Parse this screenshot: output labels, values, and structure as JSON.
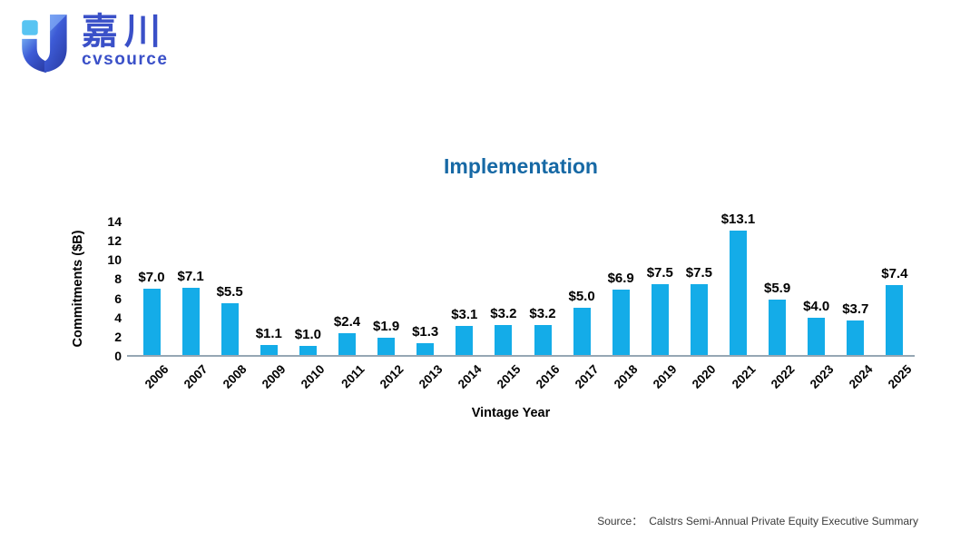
{
  "logo": {
    "brand_cn": "嘉川",
    "brand_en": "cvsource",
    "colors": {
      "light_blue": "#58C4F2",
      "dark_blue": "#2B3EA8",
      "mid_blue": "#3D5BD6",
      "text_blue": "#3A50C8"
    }
  },
  "chart_data": {
    "type": "bar",
    "title": "Implementation",
    "categories": [
      "2006",
      "2007",
      "2008",
      "2009",
      "2010",
      "2011",
      "2012",
      "2013",
      "2014",
      "2015",
      "2016",
      "2017",
      "2018",
      "2019",
      "2020",
      "2021",
      "2022",
      "2023",
      "2024",
      "2025"
    ],
    "values": [
      7.0,
      7.1,
      5.5,
      1.1,
      1.0,
      2.4,
      1.9,
      1.3,
      3.1,
      3.2,
      3.2,
      5.0,
      6.9,
      7.5,
      7.5,
      13.1,
      5.9,
      4.0,
      3.7,
      7.4
    ],
    "value_labels": [
      "$7.0",
      "$7.1",
      "$5.5",
      "$1.1",
      "$1.0",
      "$2.4",
      "$1.9",
      "$1.3",
      "$3.1",
      "$3.2",
      "$3.2",
      "$5.0",
      "$6.9",
      "$7.5",
      "$7.5",
      "$13.1",
      "$5.9",
      "$4.0",
      "$3.7",
      "$7.4"
    ],
    "xlabel": "Vintage Year",
    "ylabel": "Commitments ($B)",
    "ylim": [
      0,
      14
    ],
    "yticks": [
      0,
      2,
      4,
      6,
      8,
      10,
      12,
      14
    ],
    "grid": false,
    "legend": false,
    "bar_color": "#14ACE8",
    "axis_line_color": "#96A7B4",
    "title_color": "#1769A5"
  },
  "footer": {
    "source_label": "Source：",
    "source_text": "Calstrs Semi-Annual Private Equity Executive Summary"
  }
}
